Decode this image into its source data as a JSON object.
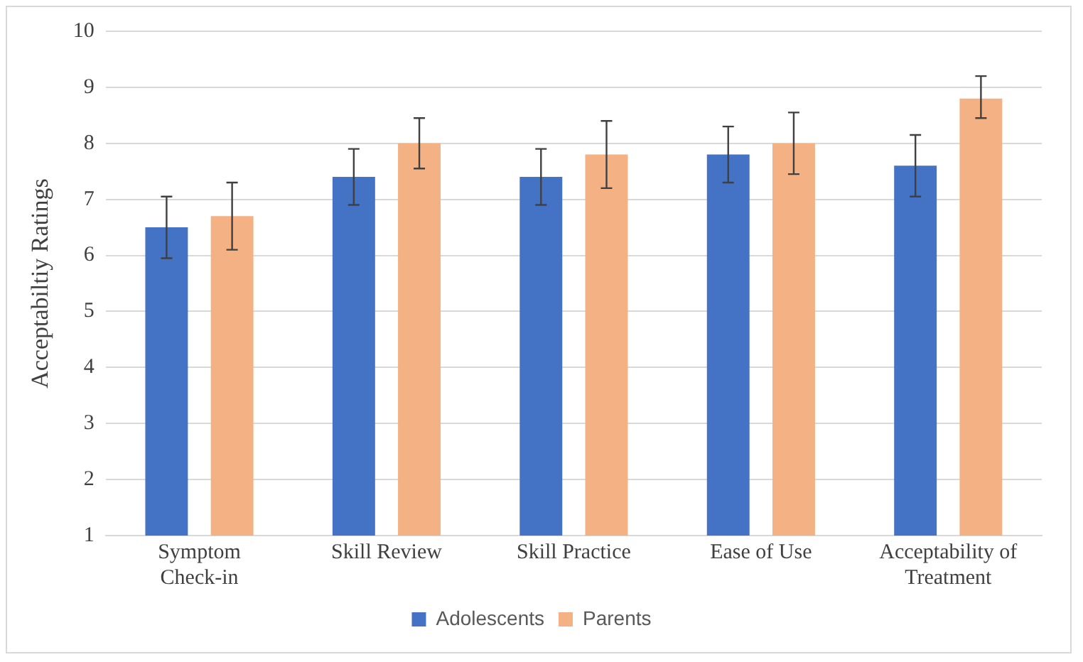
{
  "chart_data": {
    "type": "bar",
    "ylabel": "Acceptabiltiy Ratings",
    "categories": [
      "Symptom\nCheck-in",
      "Skill Review",
      "Skill Practice",
      "Ease of Use",
      "Acceptability of\nTreatment"
    ],
    "series": [
      {
        "name": "Adolescents",
        "color": "#4472c4",
        "values": [
          6.5,
          7.4,
          7.4,
          7.8,
          7.6
        ],
        "errors": [
          0.55,
          0.5,
          0.5,
          0.5,
          0.55
        ]
      },
      {
        "name": "Parents",
        "color": "#f4b183",
        "values": [
          6.7,
          8.0,
          7.8,
          8.0,
          8.8
        ],
        "errors": [
          0.6,
          0.45,
          0.6,
          0.55,
          [
            8.45,
            9.2
          ]
        ]
      }
    ],
    "ylim": [
      1,
      10
    ],
    "yticks": [
      1,
      2,
      3,
      4,
      5,
      6,
      7,
      8,
      9,
      10
    ],
    "grid": "y",
    "legend": "bottom"
  }
}
